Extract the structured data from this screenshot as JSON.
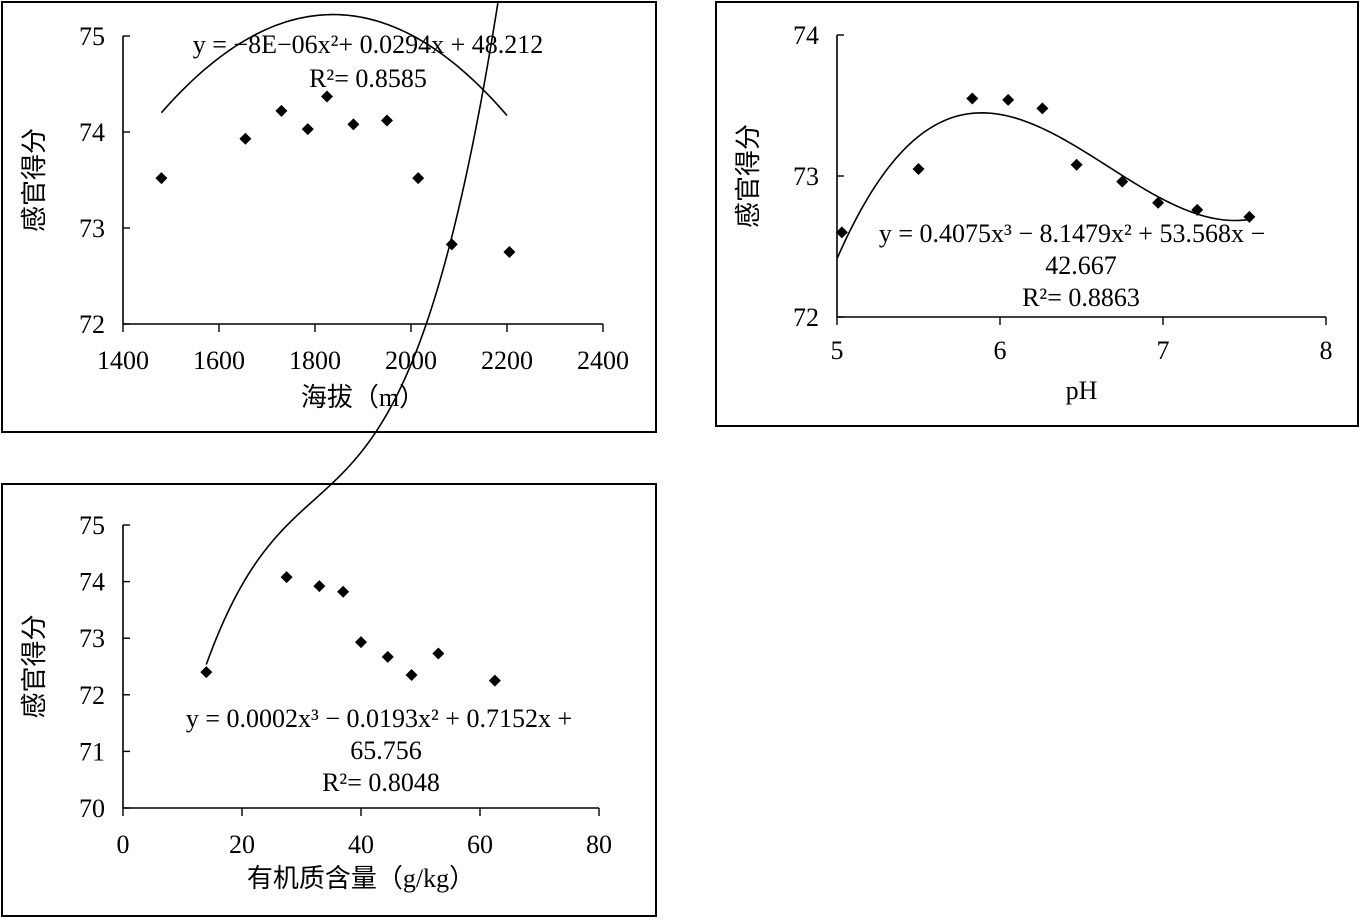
{
  "chart_data": [
    {
      "type": "scatter",
      "xlabel": "海拔（m）",
      "ylabel": "感官得分",
      "xlim": [
        1400,
        2400
      ],
      "ylim": [
        72,
        75
      ],
      "xticks": [
        "1400",
        "1600",
        "1800",
        "2000",
        "2200",
        "2400"
      ],
      "yticks": [
        "72",
        "73",
        "74",
        "75"
      ],
      "points": [
        [
          1480,
          73.52
        ],
        [
          1655,
          73.93
        ],
        [
          1730,
          74.22
        ],
        [
          1785,
          74.03
        ],
        [
          1825,
          74.37
        ],
        [
          1880,
          74.08
        ],
        [
          1950,
          74.12
        ],
        [
          2015,
          73.52
        ],
        [
          2085,
          72.83
        ],
        [
          2205,
          72.75
        ]
      ],
      "trendline": {
        "type": "polynomial",
        "coefficients": [
          48.212,
          0.0294,
          -8e-06
        ],
        "x_range": [
          1480,
          2200
        ]
      },
      "equation_line1": "y = −8E−06x²+ 0.0294x + 48.212",
      "equation_line2": "",
      "r2_text": "R²= 0.8585"
    },
    {
      "type": "scatter",
      "xlabel": "pH",
      "ylabel": "感官得分",
      "xlim": [
        5,
        8
      ],
      "ylim": [
        72,
        74
      ],
      "xticks": [
        "5",
        "6",
        "7",
        "8"
      ],
      "yticks": [
        "72",
        "73",
        "74"
      ],
      "points": [
        [
          5.03,
          72.6
        ],
        [
          5.5,
          73.05
        ],
        [
          5.83,
          73.55
        ],
        [
          6.05,
          73.54
        ],
        [
          6.26,
          73.48
        ],
        [
          6.47,
          73.08
        ],
        [
          6.75,
          72.96
        ],
        [
          6.97,
          72.81
        ],
        [
          7.21,
          72.76
        ],
        [
          7.53,
          72.71
        ]
      ],
      "trendline": {
        "type": "polynomial",
        "coefficients": [
          -42.667,
          53.568,
          -8.1479,
          0.4075
        ],
        "x_range": [
          5.0,
          7.55
        ]
      },
      "equation_line1": "y = 0.4075x³ − 8.1479x² + 53.568x −",
      "equation_line2": "42.667",
      "r2_text": "R²= 0.8863"
    },
    {
      "type": "scatter",
      "xlabel": "有机质含量（g/kg）",
      "ylabel": "感官得分",
      "xlim": [
        0,
        80
      ],
      "ylim": [
        70,
        75
      ],
      "xticks": [
        "0",
        "20",
        "40",
        "60",
        "80"
      ],
      "yticks": [
        "70",
        "71",
        "72",
        "73",
        "74",
        "75"
      ],
      "points": [
        [
          14,
          72.4
        ],
        [
          27.5,
          74.08
        ],
        [
          33,
          73.92
        ],
        [
          37,
          73.82
        ],
        [
          40,
          72.93
        ],
        [
          44.5,
          72.67
        ],
        [
          48.5,
          72.35
        ],
        [
          53,
          72.73
        ],
        [
          62.5,
          72.25
        ]
      ],
      "trendline": {
        "type": "polynomial",
        "coefficients": [
          65.756,
          0.7152,
          -0.0193,
          0.0002
        ],
        "x_range": [
          14,
          63
        ]
      },
      "equation_line1": "y = 0.0002x³ − 0.0193x² + 0.7152x +",
      "equation_line2": "65.756",
      "r2_text": "R²= 0.8048"
    }
  ]
}
